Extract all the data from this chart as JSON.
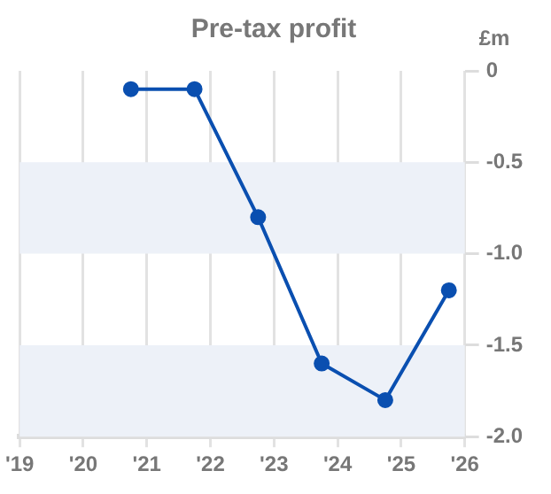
{
  "chart_data": {
    "type": "line",
    "title": "Pre-tax profit",
    "ylabel": "£m",
    "x": [
      2020.75,
      2021.75,
      2022.75,
      2023.75,
      2024.75,
      2025.75
    ],
    "series": [
      {
        "color": "#0a4fb0",
        "values": [
          -0.1,
          -0.1,
          -0.8,
          -1.6,
          -1.8,
          -1.2
        ]
      }
    ],
    "xlim": [
      2019,
      2026
    ],
    "xticks": [
      {
        "value": 2019,
        "label": "'19"
      },
      {
        "value": 2020,
        "label": "'20"
      },
      {
        "value": 2021,
        "label": "'21"
      },
      {
        "value": 2022,
        "label": "'22"
      },
      {
        "value": 2023,
        "label": "'23"
      },
      {
        "value": 2024,
        "label": "'24"
      },
      {
        "value": 2025,
        "label": "'25"
      },
      {
        "value": 2026,
        "label": "'26"
      }
    ],
    "ylim": [
      -2,
      0
    ],
    "yticks": [
      {
        "value": 0,
        "label": "0"
      },
      {
        "value": -0.5,
        "label": "-0.5"
      },
      {
        "value": -1,
        "label": "-1.0"
      },
      {
        "value": -1.5,
        "label": "-1.5"
      },
      {
        "value": -2,
        "label": "-2.0"
      }
    ],
    "bands": [
      {
        "axis": "y",
        "from": -0.5,
        "to": -1,
        "color": "#edf1f8"
      },
      {
        "axis": "y",
        "from": -1.5,
        "to": -2,
        "color": "#edf1f8"
      }
    ],
    "grid": "x",
    "marker": "circle",
    "line_style": "solid",
    "legend": false
  }
}
